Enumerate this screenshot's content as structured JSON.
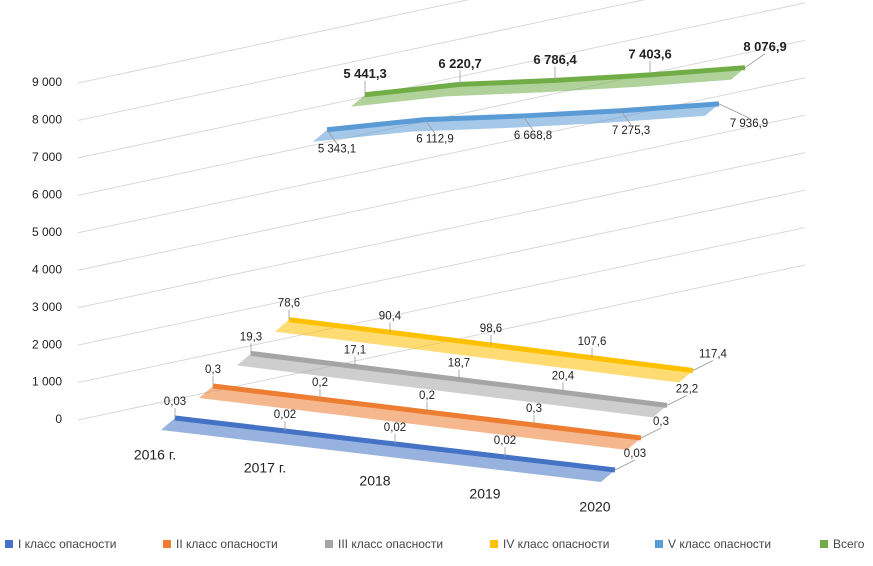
{
  "chart_data": {
    "type": "line3d",
    "categories": [
      "2016 г.",
      "2017 г.",
      "2018",
      "2019",
      "2020"
    ],
    "series": [
      {
        "name": "I класс опасности",
        "color": "#4472c4",
        "values": [
          0.03,
          0.02,
          0.02,
          0.02,
          0.03
        ],
        "value_labels": [
          "0,03",
          "0,02",
          "0,02",
          "0,02",
          "0,03"
        ]
      },
      {
        "name": "II класс опасности",
        "color": "#ed7d31",
        "values": [
          0.3,
          0.2,
          0.2,
          0.3,
          0.3
        ],
        "value_labels": [
          "0,3",
          "0,2",
          "0,2",
          "0,3",
          "0,3"
        ]
      },
      {
        "name": "III класс опасности",
        "color": "#a5a5a5",
        "values": [
          19.3,
          17.1,
          18.7,
          20.4,
          22.2
        ],
        "value_labels": [
          "19,3",
          "17,1",
          "18,7",
          "20,4",
          "22,2"
        ]
      },
      {
        "name": "IV класс опасности",
        "color": "#ffc000",
        "values": [
          78.6,
          90.4,
          98.6,
          107.6,
          117.4
        ],
        "value_labels": [
          "78,6",
          "90,4",
          "98,6",
          "107,6",
          "117,4"
        ]
      },
      {
        "name": "V класс опасности",
        "color": "#5b9bd5",
        "values": [
          5343.1,
          6112.9,
          6668.8,
          7275.3,
          7936.9
        ],
        "value_labels": [
          "5 343,1",
          "6 112,9",
          "6 668,8",
          "7 275,3",
          "7 936,9"
        ]
      },
      {
        "name": "Всего",
        "color": "#70ad47",
        "values": [
          5441.3,
          6220.7,
          6786.4,
          7403.6,
          8076.9
        ],
        "value_labels": [
          "5 441,3",
          "6 220,7",
          "6 786,4",
          "7 403,6",
          "8 076,9"
        ]
      }
    ],
    "ylim": [
      0,
      9000
    ],
    "yticks": [
      0,
      {
        "value": 1000,
        "label": "1 000"
      },
      {
        "value": 2000,
        "label": "2 000"
      },
      {
        "value": 3000,
        "label": "3 000"
      },
      {
        "value": 4000,
        "label": "4 000"
      },
      {
        "value": 5000,
        "label": "5 000"
      },
      {
        "value": 6000,
        "label": "6 000"
      },
      {
        "value": 7000,
        "label": "7 000"
      },
      {
        "value": 8000,
        "label": "8 000"
      },
      {
        "value": 9000,
        "label": "9 000"
      }
    ],
    "grid": true,
    "legend": "bottom"
  }
}
